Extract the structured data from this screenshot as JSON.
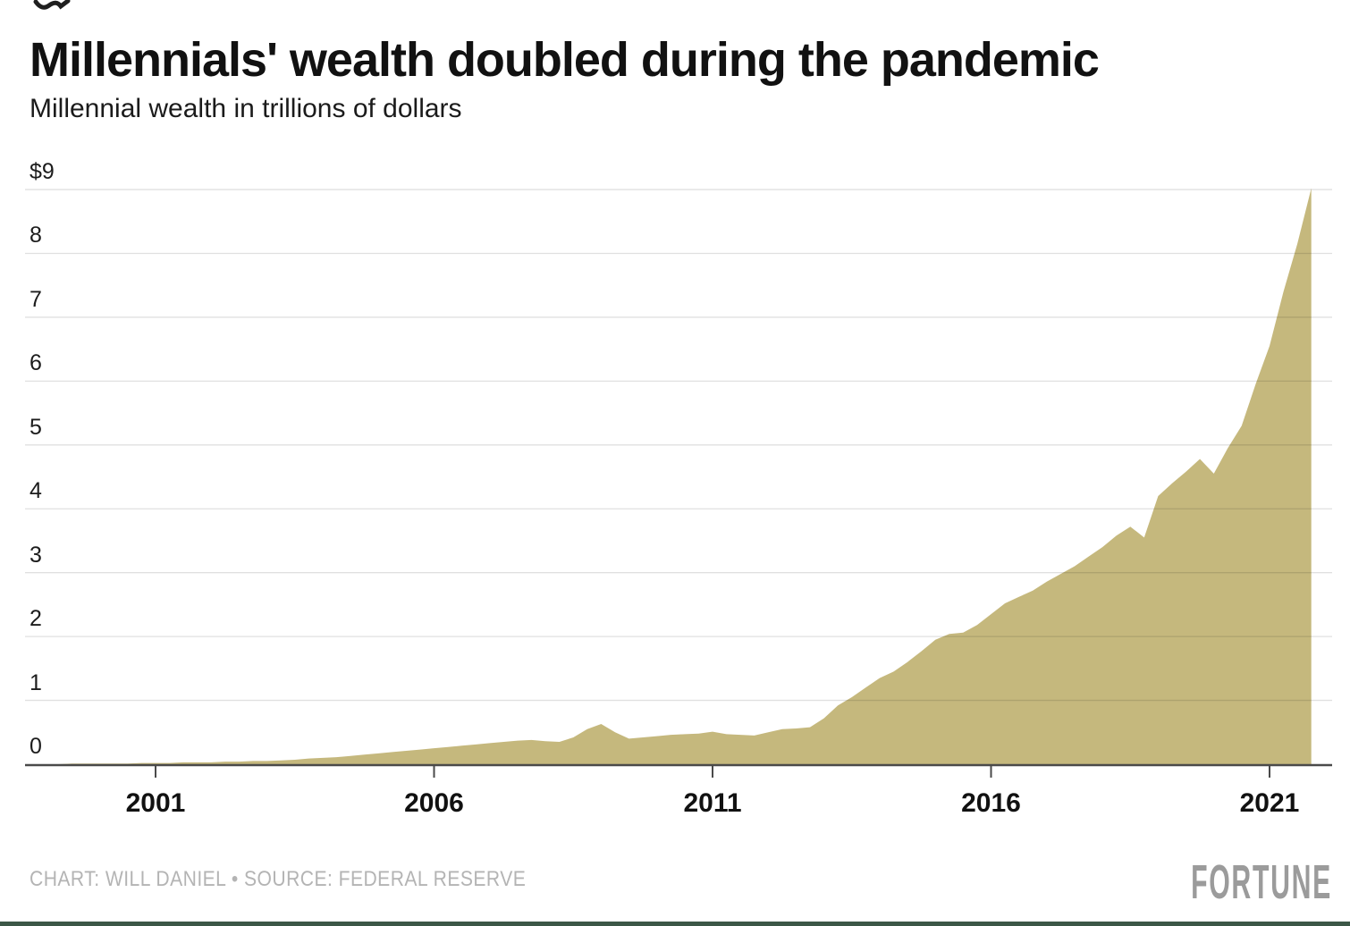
{
  "header": {
    "title": "Millennials' wealth doubled during the pandemic",
    "subtitle": "Millennial wealth in trillions of dollars"
  },
  "footer": {
    "credit": "CHART: WILL DANIEL • SOURCE: FEDERAL RESERVE",
    "brand": "FORTUNE"
  },
  "colors": {
    "area_fill": "#c5b87d",
    "gridline": "rgba(17,17,17,0.13)",
    "axis": "#4a4a4a",
    "title_text": "#111111",
    "muted_text": "#b4b4b4",
    "brand_text": "#9b9b9b",
    "bottom_bar": "#3c5747"
  },
  "chart_data": {
    "type": "area",
    "title": "Millennials' wealth doubled during the pandemic",
    "subtitle": "Millennial wealth in trillions of dollars",
    "series_name": "Millennial wealth (trillions of dollars)",
    "xlabel": "",
    "ylabel": "Millennial wealth in trillions of dollars",
    "ylim": [
      0,
      9
    ],
    "xlim": [
      1998.66,
      2022.12
    ],
    "grid": "horizontal",
    "legend": "none",
    "yticks": [
      0,
      1,
      2,
      3,
      4,
      5,
      6,
      7,
      8,
      9
    ],
    "ytick_labels": [
      "0",
      "1",
      "2",
      "3",
      "4",
      "5",
      "6",
      "7",
      "8",
      "$9"
    ],
    "xticks": [
      2001,
      2006,
      2011,
      2016,
      2021
    ],
    "xtick_labels": [
      "2001",
      "2006",
      "2011",
      "2016",
      "2021"
    ],
    "x": [
      1998.75,
      1999.0,
      1999.25,
      1999.5,
      1999.75,
      2000.0,
      2000.25,
      2000.5,
      2000.75,
      2001.0,
      2001.25,
      2001.5,
      2001.75,
      2002.0,
      2002.25,
      2002.5,
      2002.75,
      2003.0,
      2003.25,
      2003.5,
      2003.75,
      2004.0,
      2004.25,
      2004.5,
      2004.75,
      2005.0,
      2005.25,
      2005.5,
      2005.75,
      2006.0,
      2006.25,
      2006.5,
      2006.75,
      2007.0,
      2007.25,
      2007.5,
      2007.75,
      2008.0,
      2008.25,
      2008.5,
      2008.75,
      2009.0,
      2009.25,
      2009.5,
      2009.75,
      2010.0,
      2010.25,
      2010.5,
      2010.75,
      2011.0,
      2011.25,
      2011.5,
      2011.75,
      2012.0,
      2012.25,
      2012.5,
      2012.75,
      2013.0,
      2013.25,
      2013.5,
      2013.75,
      2014.0,
      2014.25,
      2014.5,
      2014.75,
      2015.0,
      2015.25,
      2015.5,
      2015.75,
      2016.0,
      2016.25,
      2016.5,
      2016.75,
      2017.0,
      2017.25,
      2017.5,
      2017.75,
      2018.0,
      2018.25,
      2018.5,
      2018.75,
      2019.0,
      2019.25,
      2019.5,
      2019.75,
      2020.0,
      2020.25,
      2020.5,
      2020.75,
      2021.0,
      2021.25,
      2021.5,
      2021.75
    ],
    "values": [
      0.0,
      0.0,
      0.0,
      0.01,
      0.01,
      0.01,
      0.01,
      0.01,
      0.02,
      0.02,
      0.02,
      0.03,
      0.03,
      0.03,
      0.04,
      0.04,
      0.05,
      0.05,
      0.06,
      0.07,
      0.09,
      0.1,
      0.11,
      0.13,
      0.15,
      0.17,
      0.19,
      0.21,
      0.23,
      0.25,
      0.27,
      0.29,
      0.31,
      0.33,
      0.35,
      0.37,
      0.38,
      0.36,
      0.35,
      0.42,
      0.55,
      0.63,
      0.5,
      0.4,
      0.42,
      0.44,
      0.46,
      0.47,
      0.48,
      0.51,
      0.47,
      0.46,
      0.45,
      0.5,
      0.55,
      0.56,
      0.58,
      0.72,
      0.92,
      1.05,
      1.2,
      1.35,
      1.45,
      1.6,
      1.77,
      1.95,
      2.04,
      2.06,
      2.18,
      2.35,
      2.52,
      2.62,
      2.72,
      2.86,
      2.98,
      3.1,
      3.25,
      3.4,
      3.58,
      3.72,
      3.55,
      4.2,
      4.4,
      4.58,
      4.78,
      4.55,
      4.95,
      5.3,
      5.95,
      6.55,
      7.4,
      8.15,
      9.02
    ]
  }
}
